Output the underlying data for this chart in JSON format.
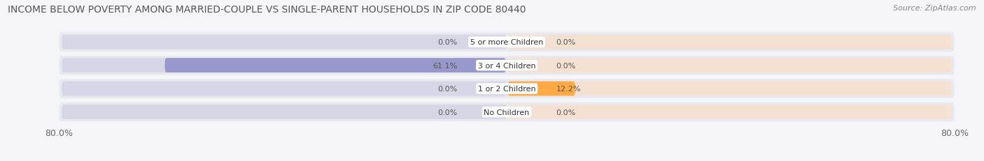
{
  "title": "INCOME BELOW POVERTY AMONG MARRIED-COUPLE VS SINGLE-PARENT HOUSEHOLDS IN ZIP CODE 80440",
  "source": "Source: ZipAtlas.com",
  "categories": [
    "No Children",
    "1 or 2 Children",
    "3 or 4 Children",
    "5 or more Children"
  ],
  "married_values": [
    0.0,
    0.0,
    61.1,
    0.0
  ],
  "single_values": [
    0.0,
    12.2,
    0.0,
    0.0
  ],
  "axis_max": 80.0,
  "married_color": "#9898cc",
  "single_color": "#ffaa44",
  "married_bg_color": "#c8c8e0",
  "single_bg_color": "#ffddbb",
  "row_bg_color": "#e8e8f0",
  "row_line_color": "#ffffff",
  "title_fontsize": 10,
  "source_fontsize": 8,
  "label_fontsize": 8,
  "category_fontsize": 8,
  "axis_label_fontsize": 9,
  "legend_fontsize": 9,
  "fig_bg_color": "#f5f5f8",
  "min_bar_width": 8.0,
  "category_label_bg": "#ffffff"
}
